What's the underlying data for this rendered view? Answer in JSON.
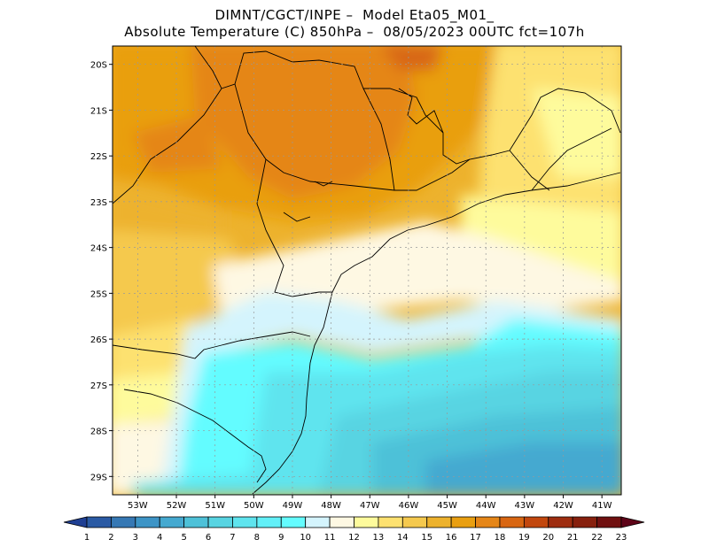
{
  "title_line1": "DIMNT/CGCT/INPE –  Model Eta05_M01_",
  "title_line2": "Absolute Temperature (C) 850hPa –  08/05/2023 00UTC fct=107h",
  "lat_labels": [
    "20S",
    "21S",
    "22S",
    "23S",
    "24S",
    "25S",
    "26S",
    "27S",
    "28S",
    "29S"
  ],
  "lat_values": [
    -20,
    -21,
    -22,
    -23,
    -24,
    -25,
    -26,
    -27,
    -28,
    -29
  ],
  "lon_labels": [
    "53W",
    "52W",
    "51W",
    "50W",
    "49W",
    "48W",
    "47W",
    "46W",
    "45W",
    "44W",
    "43W",
    "42W",
    "41W"
  ],
  "lon_values": [
    -53,
    -52,
    -51,
    -50,
    -49,
    -48,
    -47,
    -46,
    -45,
    -44,
    -43,
    -42,
    -41
  ],
  "extent": {
    "lon_min": -53.65,
    "lon_max": -40.5,
    "lat_min": -29.4,
    "lat_max": -19.6
  },
  "colorbar": {
    "labels": [
      "1",
      "2",
      "3",
      "4",
      "5",
      "6",
      "7",
      "8",
      "9",
      "10",
      "11",
      "12",
      "13",
      "14",
      "15",
      "16",
      "17",
      "18",
      "19",
      "20",
      "21",
      "22",
      "23"
    ],
    "colors": [
      "#1f3f93",
      "#2a5aa4",
      "#3678b4",
      "#3d94c6",
      "#45a9d0",
      "#4ec1d8",
      "#58d4e2",
      "#5fe4ee",
      "#62f0f8",
      "#64fcff",
      "#d4f4fd",
      "#fef8e3",
      "#fefb9c",
      "#fde170",
      "#f5c94e",
      "#edb22d",
      "#e99f11",
      "#e58618",
      "#d86612",
      "#c2470e",
      "#9e2d10",
      "#87200e",
      "#701010",
      "#5e0418"
    ]
  },
  "colors": {
    "land_north": "#e58618",
    "border_line": "#000000",
    "grid_line": "#999999"
  }
}
